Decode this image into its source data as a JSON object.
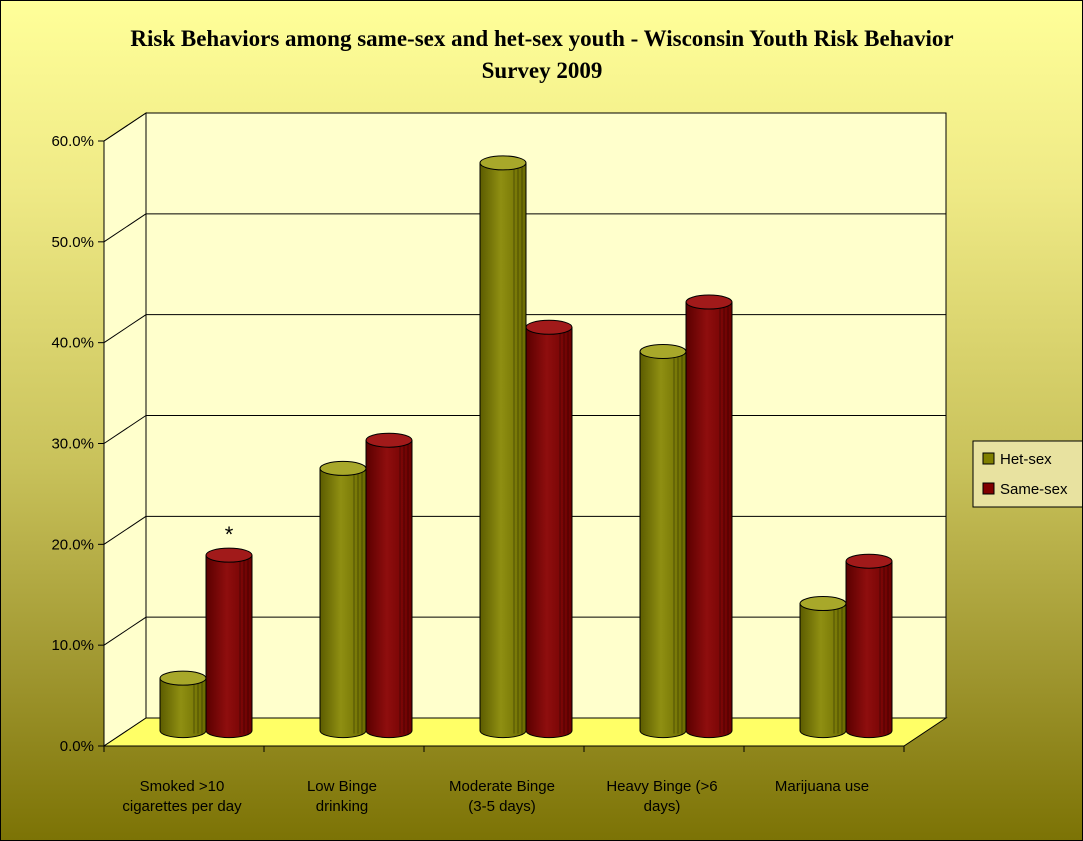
{
  "chart_data": {
    "type": "bar",
    "title": "Risk Behaviors among same-sex and het-sex youth - Wisconsin Youth Risk Behavior Survey 2009",
    "categories": [
      "Smoked >10 cigarettes per day",
      "Low Binge drinking",
      "Moderate Binge (3-5 days)",
      "Heavy Binge (>6 days)",
      "Marijuana use"
    ],
    "series": [
      {
        "name": "Het-sex",
        "values": [
          5.2,
          26.0,
          56.3,
          37.6,
          12.6
        ],
        "color": "#808000"
      },
      {
        "name": "Same-sex",
        "values": [
          17.4,
          28.8,
          40.0,
          42.5,
          16.8
        ],
        "color": "#800000"
      }
    ],
    "ylim": [
      0,
      60
    ],
    "yticks": [
      "0.0%",
      "10.0%",
      "20.0%",
      "30.0%",
      "40.0%",
      "50.0%",
      "60.0%"
    ],
    "grid": true,
    "legend": "right",
    "annotations": [
      {
        "text": "*",
        "category": 0,
        "series": 1
      }
    ]
  }
}
